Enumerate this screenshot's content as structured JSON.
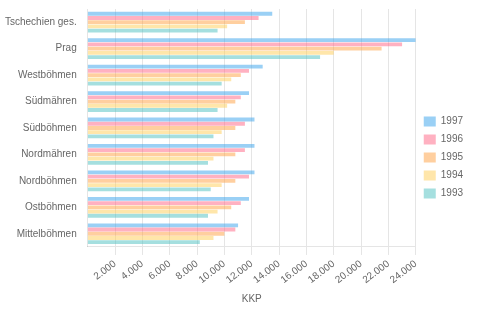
{
  "chart_data": {
    "type": "bar",
    "orientation": "horizontal",
    "categories": [
      "Tschechien ges.",
      "Prag",
      "Westböhmen",
      "Südmähren",
      "Südböhmen",
      "Nordmähren",
      "Nordböhmen",
      "Ostböhmen",
      "Mittelböhmen"
    ],
    "series": [
      {
        "name": "1997",
        "values": [
          13500,
          24000,
          12800,
          11800,
          12200,
          12200,
          12200,
          11800,
          11000
        ]
      },
      {
        "name": "1996",
        "values": [
          12500,
          23000,
          11800,
          11200,
          11500,
          11500,
          11800,
          11200,
          10800
        ]
      },
      {
        "name": "1995",
        "values": [
          11500,
          21500,
          11200,
          10800,
          10800,
          10800,
          10800,
          10500,
          10000
        ]
      },
      {
        "name": "1994",
        "values": [
          10200,
          18000,
          10500,
          10200,
          9800,
          9200,
          9800,
          9500,
          9200
        ]
      },
      {
        "name": "1993",
        "values": [
          9500,
          17000,
          9800,
          9500,
          9200,
          8800,
          9000,
          8800,
          8200
        ]
      }
    ],
    "xlabel": "KKP",
    "xlim": [
      0,
      24000
    ],
    "xticks": [
      {
        "value": 2000,
        "label": "2.000"
      },
      {
        "value": 4000,
        "label": "4.000"
      },
      {
        "value": 6000,
        "label": "6.000"
      },
      {
        "value": 8000,
        "label": "8.000"
      },
      {
        "value": 10000,
        "label": "10.000"
      },
      {
        "value": 12000,
        "label": "12.000"
      },
      {
        "value": 14000,
        "label": "14.000"
      },
      {
        "value": 16000,
        "label": "16.000"
      },
      {
        "value": 18000,
        "label": "18.000"
      },
      {
        "value": 20000,
        "label": "20.000"
      },
      {
        "value": 22000,
        "label": "22.000"
      },
      {
        "value": 24000,
        "label": "24.000"
      }
    ],
    "grid": "x",
    "legend": "right"
  }
}
